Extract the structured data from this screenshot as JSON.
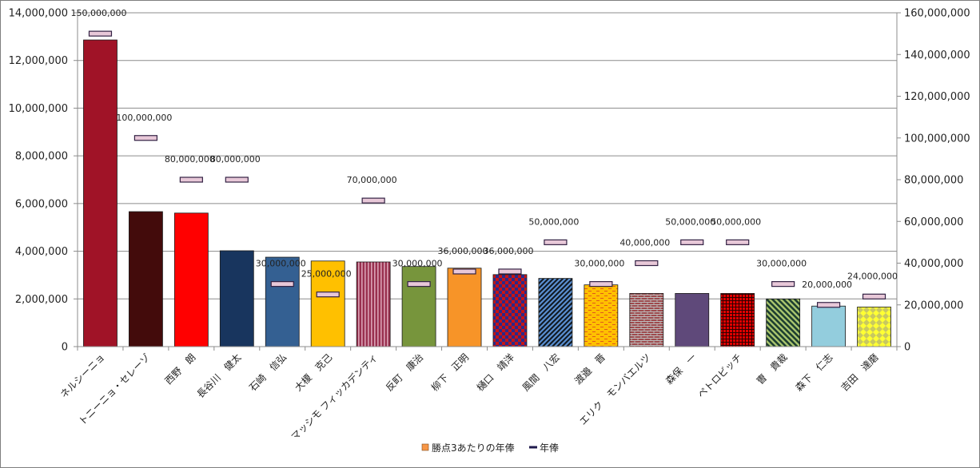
{
  "chart_data": {
    "type": "bar",
    "categories": [
      "ネルシーニョ",
      "トニーニョ・セレーゾ",
      "西野　朗",
      "長谷川　健太",
      "石崎　信弘",
      "大榎　克己",
      "マッシモ フィッカデンティ",
      "反町　康治",
      "柳下　正明",
      "樋口　靖洋",
      "風間　八宏",
      "渡邉　晋",
      "エリク　モンバエルツ",
      "森保　一",
      "ペトロビッチ",
      "曺　貴裁",
      "森下　仁志",
      "吉田　達磨"
    ],
    "series": [
      {
        "name": "勝点3あたりの年俸",
        "axis": "left",
        "values": [
          12860000,
          5660000,
          5600000,
          4020000,
          3750000,
          3590000,
          3550000,
          3360000,
          3290000,
          3020000,
          2860000,
          2590000,
          2230000,
          2230000,
          2230000,
          2000000,
          1700000,
          1660000
        ],
        "colors": [
          "#a01327",
          "#430b0b",
          "#ff0000",
          "#18355e",
          "#346092",
          "#ffc000",
          "#99304f",
          "#77953c",
          "#f79428",
          "#c81414",
          "#5a8fd1",
          "#ffc000",
          "#9e4a4d",
          "#5f497a",
          "#e00000",
          "#4e8b6f",
          "#93cddd",
          "#ffff33"
        ],
        "patterns": [
          "solid",
          "solid",
          "solid",
          "solid",
          "solid",
          "solid",
          "vstripe",
          "solid",
          "solid",
          "check",
          "diag",
          "brick-dash",
          "brick",
          "solid",
          "grid",
          "diag-wide",
          "solid",
          "diamond"
        ]
      },
      {
        "name": "年俸",
        "axis": "right",
        "type": "marker",
        "values": [
          150000000,
          100000000,
          80000000,
          80000000,
          30000000,
          25000000,
          70000000,
          30000000,
          36000000,
          36000000,
          50000000,
          30000000,
          40000000,
          50000000,
          50000000,
          30000000,
          20000000,
          24000000
        ],
        "labels": [
          "150,000,000",
          "100,000,000",
          "80,000,000",
          "80,000,000",
          "30,000,000",
          "25,000,000",
          "70,000,000",
          "30,000,000",
          "36,000,000",
          "36,000,000",
          "50,000,000",
          "30,000,000",
          "40,000,000",
          "50,000,000",
          "50,000,000",
          "30,000,000",
          "20,000,000",
          "24,000,000"
        ]
      }
    ],
    "y_left": {
      "min": 0,
      "max": 14000000,
      "ticks": [
        "0",
        "2,000,000",
        "4,000,000",
        "6,000,000",
        "8,000,000",
        "10,000,000",
        "12,000,000",
        "14,000,000"
      ]
    },
    "y_right": {
      "min": 0,
      "max": 160000000,
      "ticks": [
        "0",
        "20,000,000",
        "40,000,000",
        "60,000,000",
        "80,000,000",
        "100,000,000",
        "120,000,000",
        "140,000,000",
        "160,000,000"
      ]
    },
    "grid": true,
    "legend_position": "bottom-center",
    "legend": [
      {
        "label": "勝点3あたりの年俸",
        "color": "#f79646"
      },
      {
        "label": "年俸",
        "color": "#1f1a4d"
      }
    ],
    "marker_fill": "#e8c8d8",
    "marker_stroke": "#332244"
  }
}
